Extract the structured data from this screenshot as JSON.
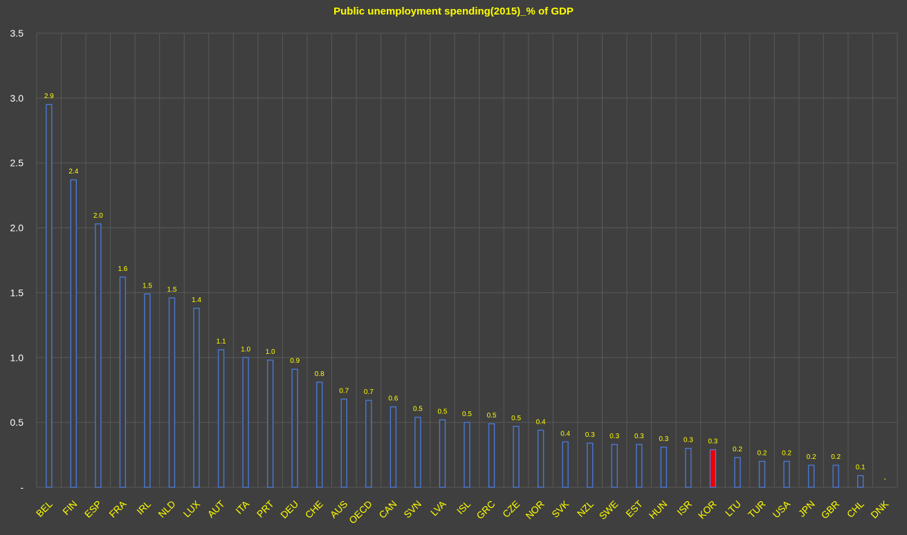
{
  "chart_data": {
    "type": "bar",
    "title": "Public unemployment spending(2015)_% of GDP",
    "categories": [
      "BEL",
      "FIN",
      "ESP",
      "FRA",
      "IRL",
      "NLD",
      "LUX",
      "AUT",
      "ITA",
      "PRT",
      "DEU",
      "CHE",
      "AUS",
      "OECD",
      "CAN",
      "SVN",
      "LVA",
      "ISL",
      "GRC",
      "CZE",
      "NOR",
      "SVK",
      "NZL",
      "SWE",
      "EST",
      "HUN",
      "ISR",
      "KOR",
      "LTU",
      "TUR",
      "USA",
      "JPN",
      "GBR",
      "CHL",
      "DNK"
    ],
    "values": [
      2.95,
      2.37,
      2.03,
      1.62,
      1.49,
      1.46,
      1.38,
      1.06,
      1.0,
      0.98,
      0.91,
      0.81,
      0.68,
      0.67,
      0.62,
      0.54,
      0.52,
      0.5,
      0.49,
      0.47,
      0.44,
      0.35,
      0.34,
      0.33,
      0.33,
      0.31,
      0.3,
      0.29,
      0.23,
      0.2,
      0.2,
      0.17,
      0.17,
      0.09,
      0.0
    ],
    "data_labels": [
      "2.9",
      "2.4",
      "2.0",
      "1.6",
      "1.5",
      "1.5",
      "1.4",
      "1.1",
      "1.0",
      "1.0",
      "0.9",
      "0.8",
      "0.7",
      "0.7",
      "0.6",
      "0.5",
      "0.5",
      "0.5",
      "0.5",
      "0.5",
      "0.4",
      "0.4",
      "0.3",
      "0.3",
      "0.3",
      "0.3",
      "0.3",
      "0.3",
      "0.2",
      "0.2",
      "0.2",
      "0.2",
      "0.2",
      "0.1",
      "-"
    ],
    "highlight": "KOR",
    "y_ticks": [
      "-",
      "0.5",
      "1.0",
      "1.5",
      "2.0",
      "2.5",
      "3.0",
      "3.5"
    ],
    "y_tick_values": [
      0,
      0.5,
      1.0,
      1.5,
      2.0,
      2.5,
      3.0,
      3.5
    ],
    "ylim": [
      0,
      3.5
    ],
    "xlabel": "",
    "ylabel": "",
    "grid": true,
    "legend": "none",
    "colors": {
      "background": "#3f3f3f",
      "grid": "#5a5a5a",
      "bar_fill": "#3f3f3f",
      "bar_stroke": "#4a78d8",
      "highlight_fill": "#ee0000",
      "highlight_stroke": "#4a78d8",
      "title": "#ffff00",
      "data_label": "#ffff00",
      "category_label": "#ffff00",
      "y_tick_label": "#ffffff"
    }
  }
}
